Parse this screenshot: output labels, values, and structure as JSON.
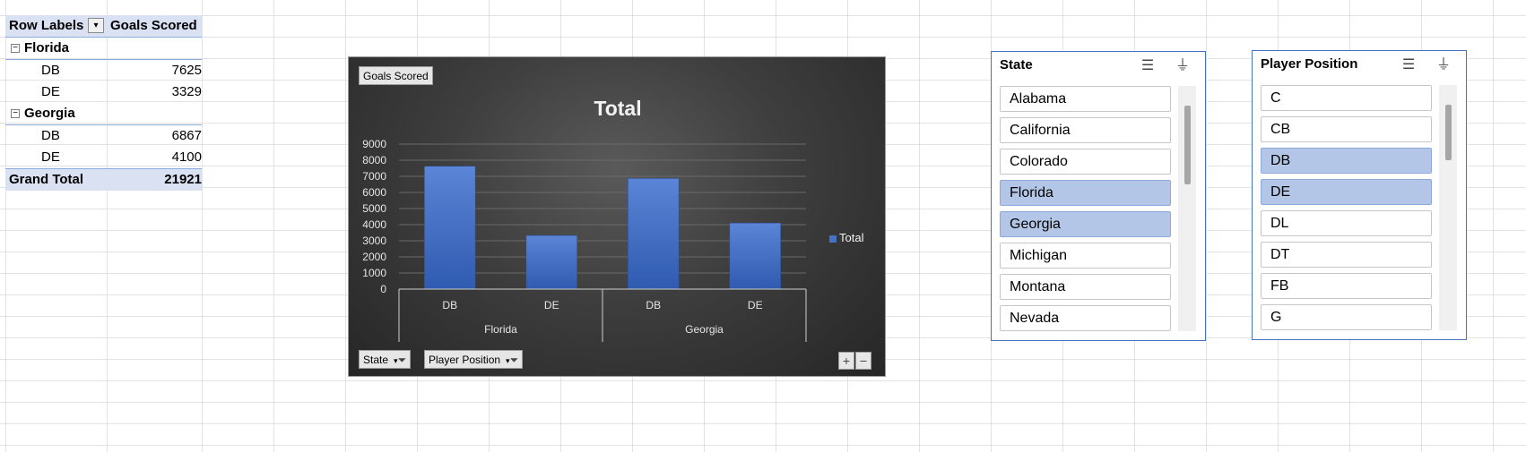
{
  "pivot": {
    "header": {
      "row_labels": "Row Labels",
      "value_col": "Goals Scored",
      "filter_icon": "filter-dropdown-icon"
    },
    "groups": [
      {
        "label": "Florida",
        "toggle": "⊟",
        "items": [
          {
            "label": "DB",
            "value": "7625"
          },
          {
            "label": "DE",
            "value": "3329"
          }
        ]
      },
      {
        "label": "Georgia",
        "toggle": "⊟",
        "items": [
          {
            "label": "DB",
            "value": "6867"
          },
          {
            "label": "DE",
            "value": "4100"
          }
        ]
      }
    ],
    "grand_total": {
      "label": "Grand Total",
      "value": "21921"
    }
  },
  "chart_field_buttons": {
    "value_field": "Goals Scored",
    "state": "State",
    "player_position": "Player Position"
  },
  "chart_data": {
    "type": "bar",
    "title": "Total",
    "categories": [
      {
        "state": "Florida",
        "position": "DB"
      },
      {
        "state": "Florida",
        "position": "DE"
      },
      {
        "state": "Georgia",
        "position": "DB"
      },
      {
        "state": "Georgia",
        "position": "DE"
      }
    ],
    "outer_labels": [
      "Florida",
      "Georgia"
    ],
    "inner_labels": [
      "DB",
      "DE",
      "DB",
      "DE"
    ],
    "series": [
      {
        "name": "Total",
        "values": [
          7625,
          3329,
          6867,
          4100
        ],
        "color": "#4472c4"
      }
    ],
    "ylim": [
      0,
      9000
    ],
    "yticks": [
      "0",
      "1000",
      "2000",
      "3000",
      "4000",
      "5000",
      "6000",
      "7000",
      "8000",
      "9000"
    ],
    "grid": true,
    "legend": "right",
    "legend_label": "Total"
  },
  "zoom": {
    "plus": "+",
    "minus": "−"
  },
  "slicer_state": {
    "title": "State",
    "items": [
      {
        "label": "Alabama",
        "selected": false
      },
      {
        "label": "California",
        "selected": false
      },
      {
        "label": "Colorado",
        "selected": false
      },
      {
        "label": "Florida",
        "selected": true
      },
      {
        "label": "Georgia",
        "selected": true
      },
      {
        "label": "Michigan",
        "selected": false
      },
      {
        "label": "Montana",
        "selected": false
      },
      {
        "label": "Nevada",
        "selected": false
      }
    ]
  },
  "slicer_position": {
    "title": "Player Position",
    "items": [
      {
        "label": "C",
        "selected": false
      },
      {
        "label": "CB",
        "selected": false
      },
      {
        "label": "DB",
        "selected": true
      },
      {
        "label": "DE",
        "selected": true
      },
      {
        "label": "DL",
        "selected": false
      },
      {
        "label": "DT",
        "selected": false
      },
      {
        "label": "FB",
        "selected": false
      },
      {
        "label": "G",
        "selected": false
      }
    ]
  },
  "colors": {
    "accent": "#4472c4",
    "selected_item": "#b4c6e7",
    "pivot_header": "#d9e1f2"
  }
}
